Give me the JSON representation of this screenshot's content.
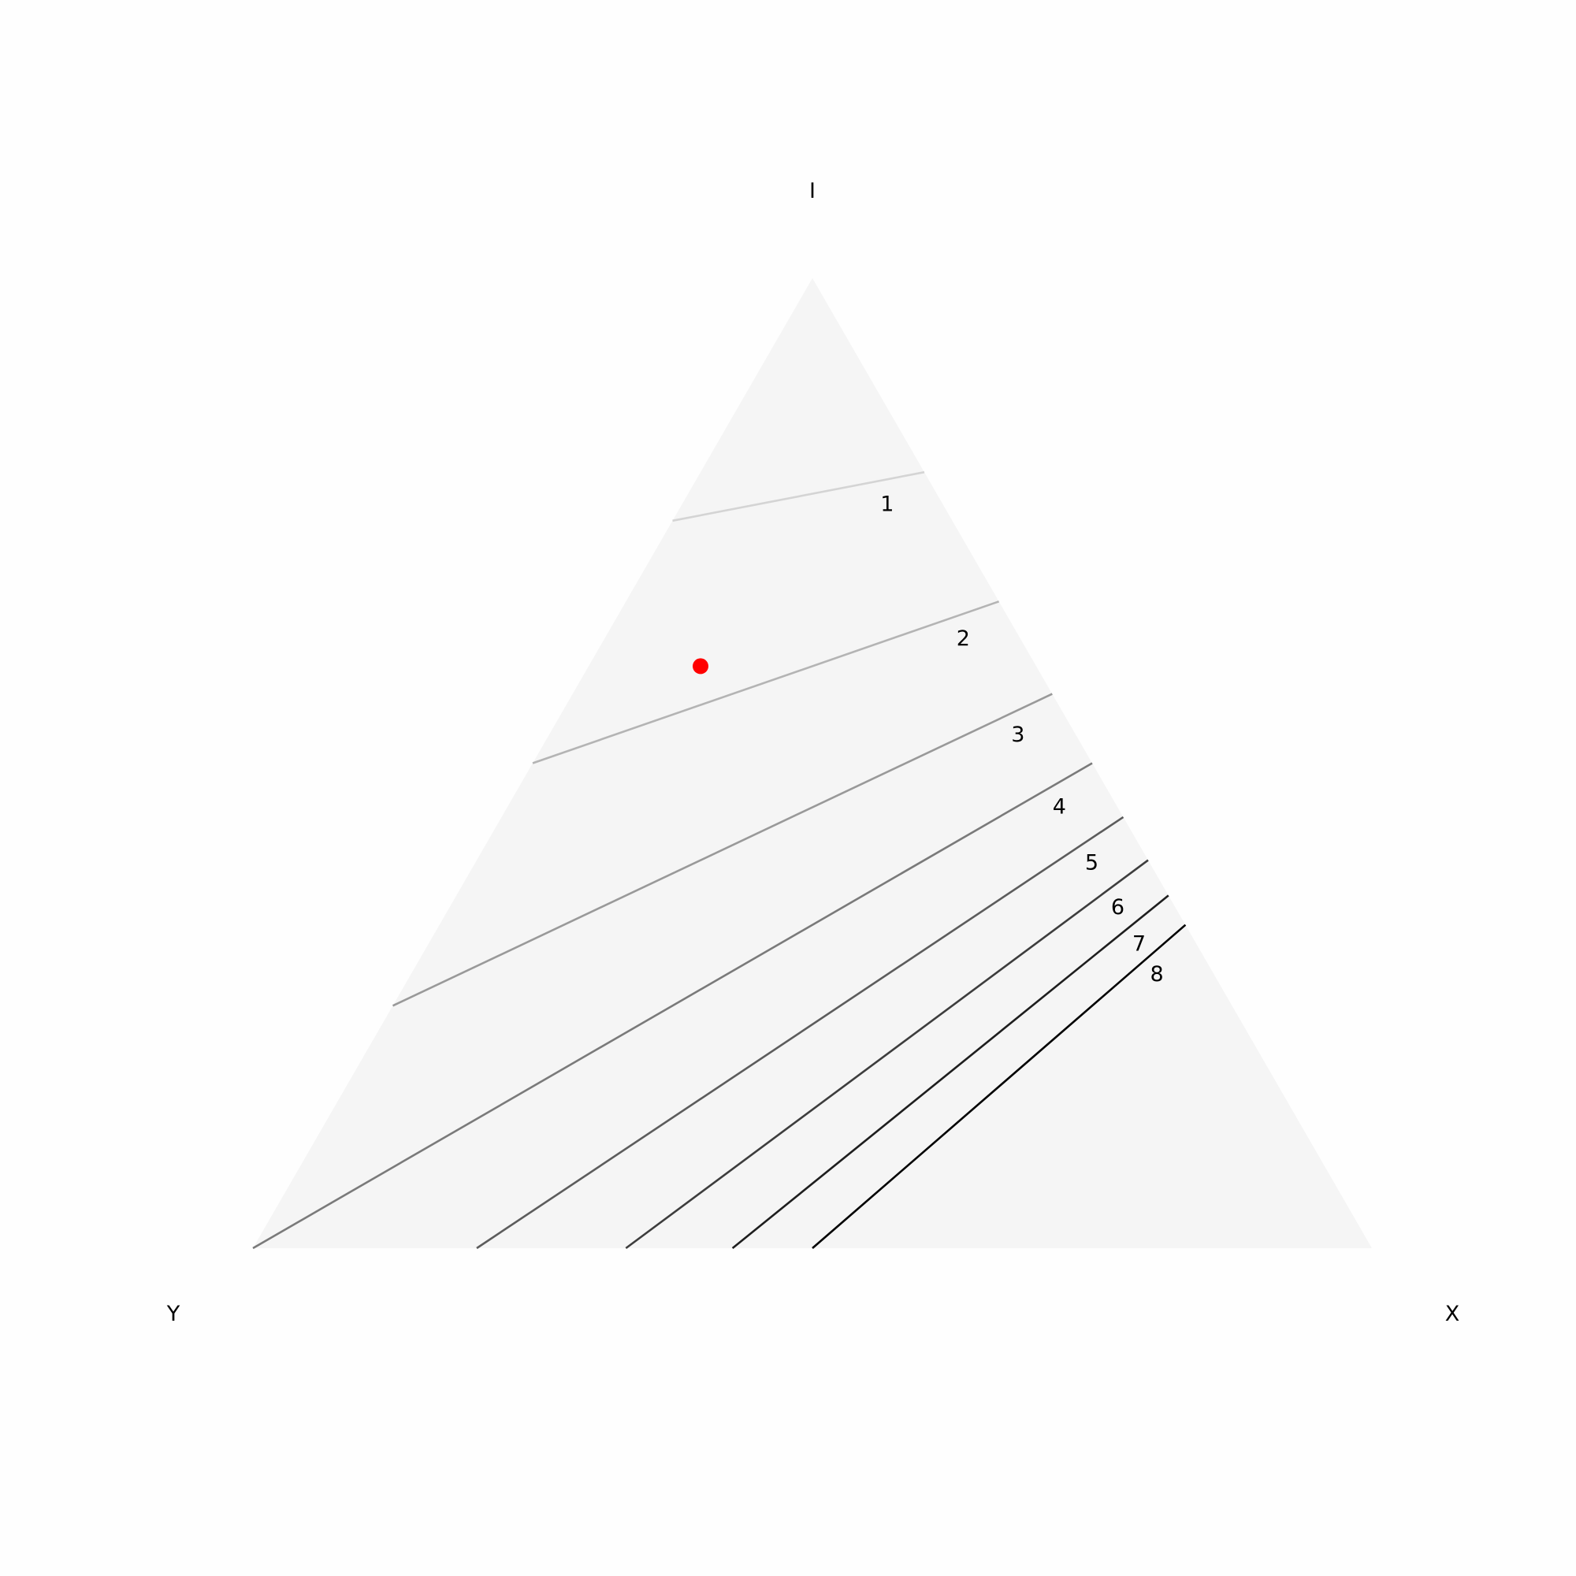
{
  "chart_data": {
    "type": "ternary-contour",
    "title": "",
    "vertices": {
      "top": "I",
      "left": "Y",
      "right": "X"
    },
    "contours": [
      {
        "level": "1",
        "start": {
          "edge": "left",
          "t": 0.25
        },
        "end": {
          "edge": "right",
          "t": 0.2
        },
        "color": "#d4d4d4"
      },
      {
        "level": "2",
        "start": {
          "edge": "left",
          "t": 0.5
        },
        "end": {
          "edge": "right",
          "t": 0.3333
        },
        "color": "#b4b4b4"
      },
      {
        "level": "3",
        "start": {
          "edge": "left",
          "t": 0.75
        },
        "end": {
          "edge": "right",
          "t": 0.4286
        },
        "color": "#999999"
      },
      {
        "level": "4",
        "start": {
          "edge": "bottom",
          "t": 0.0
        },
        "end": {
          "edge": "right",
          "t": 0.5
        },
        "color": "#7a7a7a"
      },
      {
        "level": "5",
        "start": {
          "edge": "bottom",
          "t": 0.2
        },
        "end": {
          "edge": "right",
          "t": 0.5556
        },
        "color": "#5c5c5c"
      },
      {
        "level": "6",
        "start": {
          "edge": "bottom",
          "t": 0.3333
        },
        "end": {
          "edge": "right",
          "t": 0.6
        },
        "color": "#3d3d3d"
      },
      {
        "level": "7",
        "start": {
          "edge": "bottom",
          "t": 0.4286
        },
        "end": {
          "edge": "right",
          "t": 0.6364
        },
        "color": "#1e1e1e"
      },
      {
        "level": "8",
        "start": {
          "edge": "bottom",
          "t": 0.5
        },
        "end": {
          "edge": "right",
          "t": 0.6667
        },
        "color": "#000000"
      }
    ],
    "point": {
      "color": "#ff0000",
      "I": 0.6,
      "Y": 0.3,
      "X": 0.1
    },
    "background": "#f5f5f5"
  }
}
